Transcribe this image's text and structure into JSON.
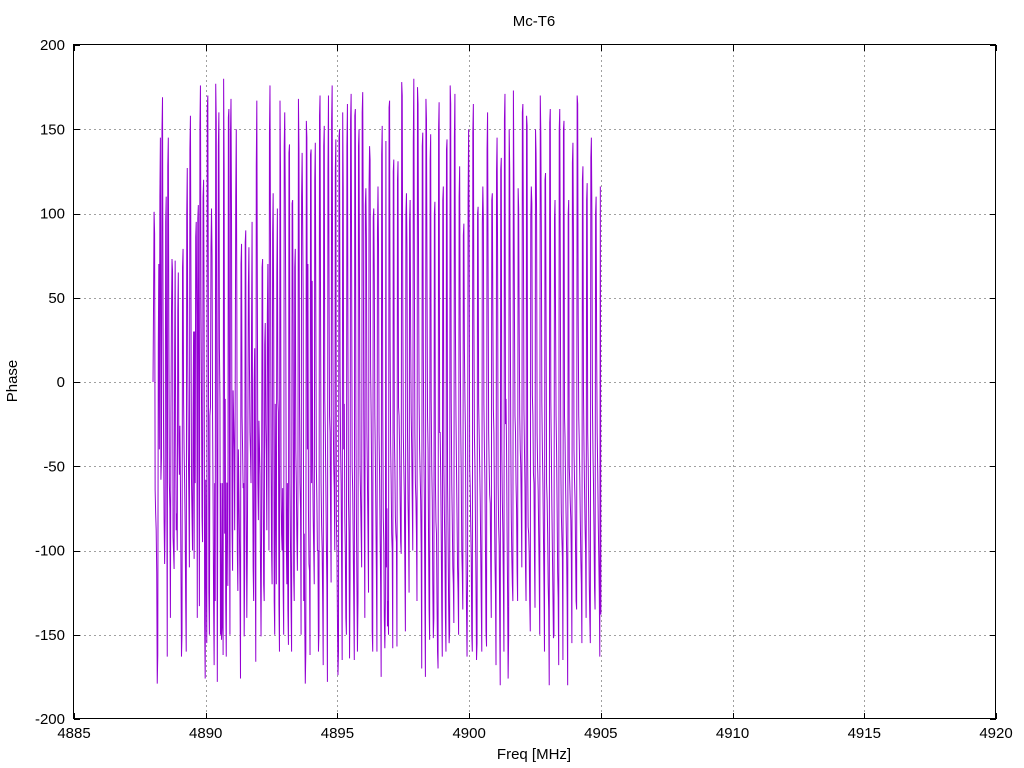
{
  "chart_data": {
    "type": "line",
    "title": "Mc-T6",
    "xlabel": "Freq [MHz]",
    "ylabel": "Phase",
    "xlim": [
      4885,
      4920
    ],
    "ylim": [
      -200,
      200
    ],
    "xticks": [
      4885,
      4890,
      4895,
      4900,
      4905,
      4910,
      4915,
      4920
    ],
    "yticks": [
      -200,
      -150,
      -100,
      -50,
      0,
      50,
      100,
      150,
      200
    ],
    "grid": true,
    "legend": "none",
    "series": [
      {
        "color": "#9400d3",
        "x_start": 4888.0,
        "x_step": 0.02,
        "y": [
          0,
          48,
          101,
          88,
          -64,
          -78,
          -88,
          -113,
          -179,
          -162,
          22,
          70,
          -40,
          110,
          145,
          -58,
          -45,
          150,
          169,
          40,
          -30,
          -82,
          -108,
          -80,
          95,
          110,
          -40,
          -163,
          128,
          145,
          32,
          -60,
          -75,
          -140,
          -20,
          40,
          73,
          66,
          -92,
          -101,
          -111,
          18,
          72,
          -30,
          -88,
          -78,
          -100,
          42,
          65,
          -35,
          -55,
          -26,
          -60,
          -110,
          -163,
          -150,
          68,
          79,
          -12,
          -40,
          -60,
          -86,
          -130,
          -160,
          100,
          127,
          10,
          -40,
          -68,
          -110,
          138,
          158,
          60,
          -58,
          -80,
          -100,
          -20,
          30,
          -105,
          30,
          -60,
          86,
          95,
          40,
          -140,
          97,
          105,
          -50,
          -133,
          152,
          176,
          48,
          -10,
          -80,
          -95,
          110,
          120,
          40,
          -143,
          -176,
          -58,
          -103,
          -155,
          162,
          170,
          50,
          -125,
          -150,
          -20,
          -15,
          80,
          103,
          75,
          -20,
          -70,
          -132,
          -168,
          -60,
          -130,
          177,
          155,
          -15,
          -178,
          -56,
          140,
          160,
          20,
          -10,
          -150,
          -60,
          -153,
          -145,
          -60,
          -162,
          180,
          125,
          -90,
          -10,
          -130,
          -163,
          -60,
          -60,
          -121,
          157,
          162,
          -70,
          -150,
          147,
          168,
          95,
          -88,
          -112,
          -5,
          -22,
          -40,
          -88,
          0,
          110,
          150,
          55,
          -100,
          -124,
          -40,
          -65,
          -90,
          -120,
          -176,
          70,
          82,
          -20,
          -40,
          -63,
          -60,
          -151,
          -110,
          83,
          90,
          -78,
          -140,
          -100,
          -30,
          57,
          80,
          10,
          -30,
          -43,
          -60,
          32,
          95,
          -40,
          -110,
          -130,
          0,
          20,
          -95,
          -166,
          128,
          167,
          52,
          -60,
          -82,
          -23,
          -38,
          -55,
          -110,
          -151,
          -86,
          68,
          73,
          -60,
          -120,
          -130,
          22,
          35,
          -25,
          -43,
          -88,
          40,
          70,
          -16,
          -100,
          148,
          176,
          80,
          -40,
          -100,
          -120,
          88,
          112,
          40,
          -130,
          -150,
          -13,
          -70,
          -120,
          65,
          103,
          -10,
          -18,
          -132,
          -160,
          167,
          125,
          -60,
          -90,
          -100,
          -63,
          -123,
          -150,
          140,
          160,
          110,
          30,
          -95,
          -120,
          -60,
          -135,
          -156,
          136,
          141,
          -60,
          -100,
          -135,
          -160,
          106,
          108,
          28,
          -115,
          -130,
          68,
          79,
          -40,
          -60,
          -92,
          -112,
          -70,
          168,
          138,
          -10,
          -60,
          -75,
          -150,
          110,
          136,
          94,
          50,
          -130,
          -90,
          -142,
          -179,
          -160,
          155,
          145,
          -40,
          70,
          -76,
          -108,
          -112,
          -162,
          135,
          138,
          -60,
          60,
          -47,
          -80,
          -100,
          -120,
          120,
          142,
          40,
          -50,
          -70,
          -100,
          -100,
          -160,
          -148,
          158,
          170,
          40,
          -60,
          -85,
          -99,
          -130,
          -168,
          140,
          152,
          -10,
          -30,
          -60,
          -95,
          -120,
          -178,
          125,
          170,
          68,
          -20,
          -30,
          -80,
          -119,
          155,
          176,
          48,
          -20,
          -50,
          -64,
          -100,
          125,
          144,
          -80,
          -100,
          -140,
          -174,
          -160,
          145,
          150,
          5,
          -40,
          -60,
          -110,
          -165,
          160,
          115,
          -40,
          -13,
          -80,
          -100,
          -140,
          -150,
          140,
          165,
          20,
          -70,
          -90,
          -164,
          -116,
          155,
          171,
          62,
          -50,
          -65,
          -97,
          -130,
          -165,
          158,
          162,
          -13,
          -80,
          -120,
          -160,
          -130,
          140,
          150,
          42,
          -50,
          -70,
          -90,
          -110,
          160,
          172,
          98,
          -20,
          -80,
          -140,
          105,
          115,
          86,
          -30,
          -60,
          -90,
          -125,
          115,
          140,
          132,
          8,
          -20,
          -60,
          -148,
          -160,
          98,
          103,
          60,
          -20,
          -45,
          -80,
          -115,
          -160,
          90,
          116,
          80,
          -30,
          -55,
          -90,
          -120,
          -175,
          135,
          152,
          -15,
          -80,
          -95,
          -140,
          -158,
          -130,
          143,
          -110,
          -75,
          -145,
          -130,
          -150,
          163,
          167,
          25,
          -38,
          -60,
          -90,
          -100,
          -158,
          125,
          132,
          -30,
          -50,
          -80,
          -90,
          -95,
          -157,
          120,
          131,
          -15,
          -20,
          -40,
          -70,
          -95,
          -102,
          178,
          170,
          52,
          -30,
          -50,
          -68,
          -110,
          -148,
          100,
          112,
          80,
          -30,
          -70,
          -90,
          -125,
          95,
          108,
          30,
          -18,
          -40,
          -70,
          -100,
          142,
          180,
          70,
          -30,
          -60,
          -70,
          -90,
          -130,
          175,
          165,
          70,
          -10,
          -40,
          -55,
          -70,
          -100,
          -170,
          140,
          148,
          18,
          -40,
          -70,
          -130,
          -175,
          168,
          156,
          67,
          -20,
          -40,
          -95,
          -135,
          -153,
          132,
          147,
          -10,
          -50,
          -70,
          -120,
          -152,
          -140,
          100,
          107,
          -60,
          -83,
          -90,
          -130,
          -160,
          -170,
          150,
          166,
          -30,
          -30,
          -55,
          -90,
          -135,
          -163,
          108,
          116,
          -50,
          -78,
          -98,
          -140,
          -160,
          138,
          144,
          -60,
          -90,
          -130,
          -155,
          -148,
          176,
          165,
          -10,
          -60,
          -82,
          -110,
          -120,
          -143,
          145,
          171,
          30,
          -20,
          -51,
          -80,
          -110,
          -125,
          -150,
          110,
          128,
          32,
          -25,
          -55,
          -100,
          -113,
          -135,
          87,
          94,
          20,
          -10,
          -30,
          -100,
          -135,
          -163,
          -113,
          108,
          150,
          88,
          -50,
          -62,
          -85,
          -104,
          -150,
          -160,
          148,
          165,
          42,
          -31,
          -50,
          -85,
          -120,
          -165,
          -155,
          100,
          104,
          -13,
          -30,
          -50,
          -70,
          -100,
          -132,
          -160,
          94,
          116,
          98,
          -13,
          -40,
          -60,
          -100,
          -148,
          -157,
          138,
          160,
          67,
          -30,
          -50,
          -67,
          -72,
          -110,
          -140,
          108,
          112,
          44,
          -16,
          -30,
          -70,
          -105,
          -125,
          -168,
          125,
          145,
          76,
          -60,
          -86,
          -97,
          -140,
          -180,
          126,
          133,
          -40,
          -70,
          -89,
          -120,
          -160,
          156,
          171,
          -25,
          -10,
          -40,
          -88,
          -125,
          -176,
          -150,
          150,
          126,
          48,
          -30,
          -80,
          -104,
          -120,
          -130,
          173,
          119,
          40,
          -20,
          -30,
          -60,
          -75,
          -112,
          -130,
          115,
          103,
          35,
          -20,
          -40,
          -50,
          -76,
          -110,
          160,
          165,
          87,
          -16,
          -40,
          -62,
          -110,
          -130,
          158,
          152,
          -42,
          -86,
          -90,
          -102,
          -130,
          -148,
          98,
          116,
          106,
          -8,
          -20,
          -54,
          -60,
          -104,
          -134,
          150,
          136,
          100,
          -30,
          -50,
          -64,
          -90,
          -115,
          -150,
          170,
          148,
          92,
          -12,
          -40,
          -60,
          -90,
          -120,
          -160,
          120,
          124,
          36,
          -60,
          -70,
          -90,
          -120,
          -135,
          -180,
          154,
          162,
          -10,
          -40,
          -73,
          -100,
          -125,
          -152,
          -150,
          97,
          108,
          38,
          -20,
          -42,
          -76,
          -113,
          -128,
          -168,
          150,
          162,
          72,
          -50,
          -78,
          -92,
          -104,
          -165,
          150,
          155,
          -20,
          -33,
          -60,
          -80,
          -100,
          -130,
          -180,
          100,
          108,
          -50,
          -60,
          -72,
          -82,
          -106,
          -155,
          130,
          142,
          86,
          -40,
          -58,
          -70,
          -100,
          -130,
          -135,
          170,
          165,
          40,
          -20,
          -35,
          -56,
          -82,
          -105,
          -120,
          -155,
          120,
          128,
          -5,
          -40,
          -63,
          -85,
          -100,
          -140,
          108,
          118,
          -30,
          -50,
          -80,
          -120,
          -140,
          -155,
          133,
          145,
          100,
          -13,
          -40,
          -60,
          -90,
          -122,
          -135,
          100,
          110,
          20,
          -30,
          -52,
          -81,
          -103,
          -125,
          -163,
          116,
          -138
        ]
      }
    ]
  }
}
